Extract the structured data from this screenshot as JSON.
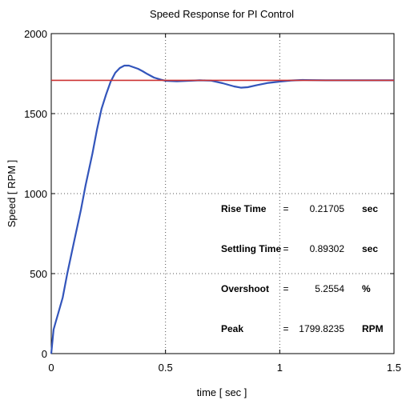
{
  "chart_data": {
    "type": "line",
    "title": "Speed Response for PI Control",
    "xlabel": "time [ sec ]",
    "ylabel": "Speed [ RPM ]",
    "xlim": [
      0,
      1.5
    ],
    "ylim": [
      0,
      2000
    ],
    "x_ticks": [
      0,
      0.5,
      1,
      1.5
    ],
    "x_tick_labels": [
      "0",
      "0.5",
      "1",
      "1.5"
    ],
    "y_ticks": [
      0,
      500,
      1000,
      1500,
      2000
    ],
    "y_tick_labels": [
      "0",
      "500",
      "1000",
      "1500",
      "2000"
    ],
    "grid": true,
    "grid_style": "dotted",
    "series": [
      {
        "color": "#3355bb",
        "x": [
          0,
          0.01,
          0.02,
          0.03,
          0.05,
          0.07,
          0.1,
          0.13,
          0.15,
          0.18,
          0.2,
          0.22,
          0.24,
          0.26,
          0.28,
          0.3,
          0.32,
          0.34,
          0.36,
          0.38,
          0.4,
          0.42,
          0.45,
          0.48,
          0.5,
          0.55,
          0.6,
          0.65,
          0.7,
          0.75,
          0.8,
          0.83,
          0.86,
          0.9,
          0.95,
          1.0,
          1.05,
          1.1,
          1.2,
          1.3,
          1.4,
          1.5
        ],
        "y": [
          0,
          150,
          200,
          250,
          350,
          500,
          700,
          900,
          1050,
          1250,
          1400,
          1530,
          1620,
          1700,
          1755,
          1785,
          1800,
          1800,
          1790,
          1780,
          1765,
          1748,
          1725,
          1712,
          1705,
          1702,
          1705,
          1708,
          1706,
          1690,
          1670,
          1662,
          1665,
          1678,
          1692,
          1700,
          1707,
          1710,
          1708,
          1708,
          1708,
          1708
        ]
      },
      {
        "color": "#cc3333",
        "x": [
          0,
          1.5
        ],
        "y": [
          1708,
          1708
        ]
      }
    ],
    "annotations": [
      {
        "label": "Rise Time",
        "eq": "=",
        "value": "0.21705",
        "unit": "sec"
      },
      {
        "label": "Settling Time",
        "eq": "=",
        "value": "0.89302",
        "unit": "sec"
      },
      {
        "label": "Overshoot",
        "eq": "=",
        "value": "5.2554",
        "unit": "%"
      },
      {
        "label": "Peak",
        "eq": "=",
        "value": "1799.8235",
        "unit": "RPM"
      }
    ]
  }
}
